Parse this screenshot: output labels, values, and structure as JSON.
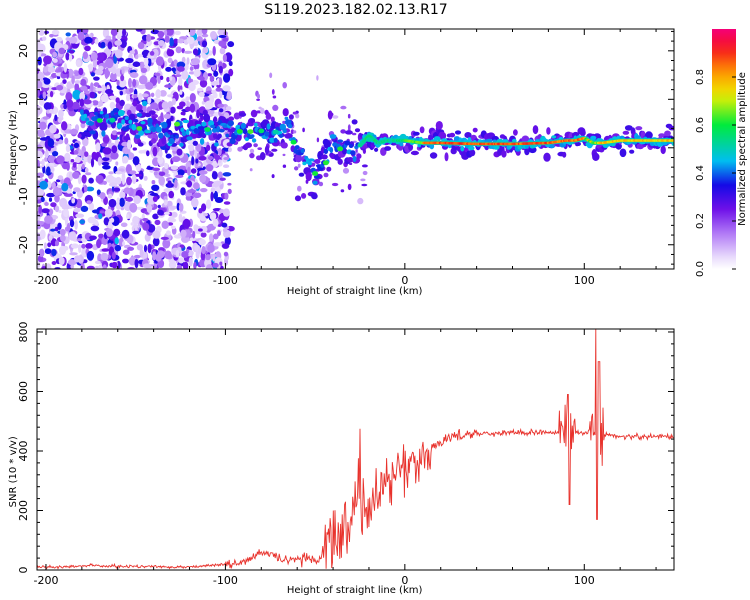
{
  "title": "S119.2023.182.02.13.R17",
  "colors": {
    "snr_line": "#e8322c",
    "axis": "#000000"
  },
  "chart_data": [
    {
      "type": "heatmap",
      "xlabel": "Height of straight line (km)",
      "ylabel": "Frequency (Hz)",
      "xlim": [
        -205,
        150
      ],
      "ylim": [
        -25,
        24.5
      ],
      "xticks": [
        -200,
        -100,
        0,
        100
      ],
      "yticks": [
        -20,
        -10,
        0,
        10,
        20
      ],
      "colormap": "rainbow (purple-blue-cyan-green-yellow-red-magenta)",
      "colorbar": {
        "label": "Normalized spectral amplitude",
        "range": [
          0,
          1
        ],
        "ticks": [
          0.0,
          0.2,
          0.4,
          0.6,
          0.8
        ]
      },
      "ridge": {
        "description": "dominant frequency ridge (approx.)",
        "x": [
          -175,
          -160,
          -145,
          -130,
          -115,
          -100,
          -90,
          -80,
          -70,
          -65,
          -60,
          -55,
          -50,
          -45,
          -40,
          -35,
          -30,
          -25,
          -20,
          -15,
          -10,
          -5,
          0,
          10,
          20,
          40,
          60,
          80,
          90,
          95,
          100,
          105,
          110,
          120,
          135,
          150
        ],
        "y": [
          6,
          6,
          4,
          4,
          4,
          4,
          3.5,
          3,
          3,
          4,
          0,
          -3,
          -5,
          -3,
          0,
          0,
          0,
          0.5,
          2.5,
          1,
          1.5,
          1.5,
          1.5,
          1,
          1,
          0.8,
          0.8,
          1,
          1.5,
          1.5,
          2,
          1,
          1,
          1.5,
          1.5,
          1.5
        ]
      }
    },
    {
      "type": "line",
      "xlabel": "Height of straight line (km)",
      "ylabel": "SNR (10 * v/v)",
      "xlim": [
        -205,
        150
      ],
      "ylim": [
        0,
        810
      ],
      "xticks": [
        -200,
        -100,
        0,
        100
      ],
      "yticks": [
        0,
        200,
        400,
        600,
        800
      ],
      "series": [
        {
          "x": [
            -205,
            -190,
            -175,
            -160,
            -145,
            -130,
            -115,
            -100,
            -95,
            -90,
            -85,
            -80,
            -75,
            -70,
            -65,
            -60,
            -55,
            -50,
            -45,
            -40,
            -35,
            -30,
            -25,
            -20,
            -15,
            -10,
            -5,
            0,
            5,
            10,
            15,
            20,
            25,
            30,
            40,
            50,
            60,
            70,
            80,
            85,
            90,
            95,
            100,
            105,
            110,
            120,
            130,
            140,
            150
          ],
          "values": [
            10,
            10,
            15,
            12,
            12,
            10,
            12,
            20,
            20,
            25,
            40,
            60,
            55,
            35,
            30,
            35,
            40,
            30,
            60,
            100,
            130,
            190,
            240,
            215,
            260,
            300,
            310,
            350,
            360,
            380,
            410,
            430,
            445,
            455,
            458,
            460,
            462,
            462,
            465,
            460,
            470,
            462,
            455,
            470,
            455,
            450,
            448,
            450,
            448
          ]
        }
      ]
    }
  ]
}
